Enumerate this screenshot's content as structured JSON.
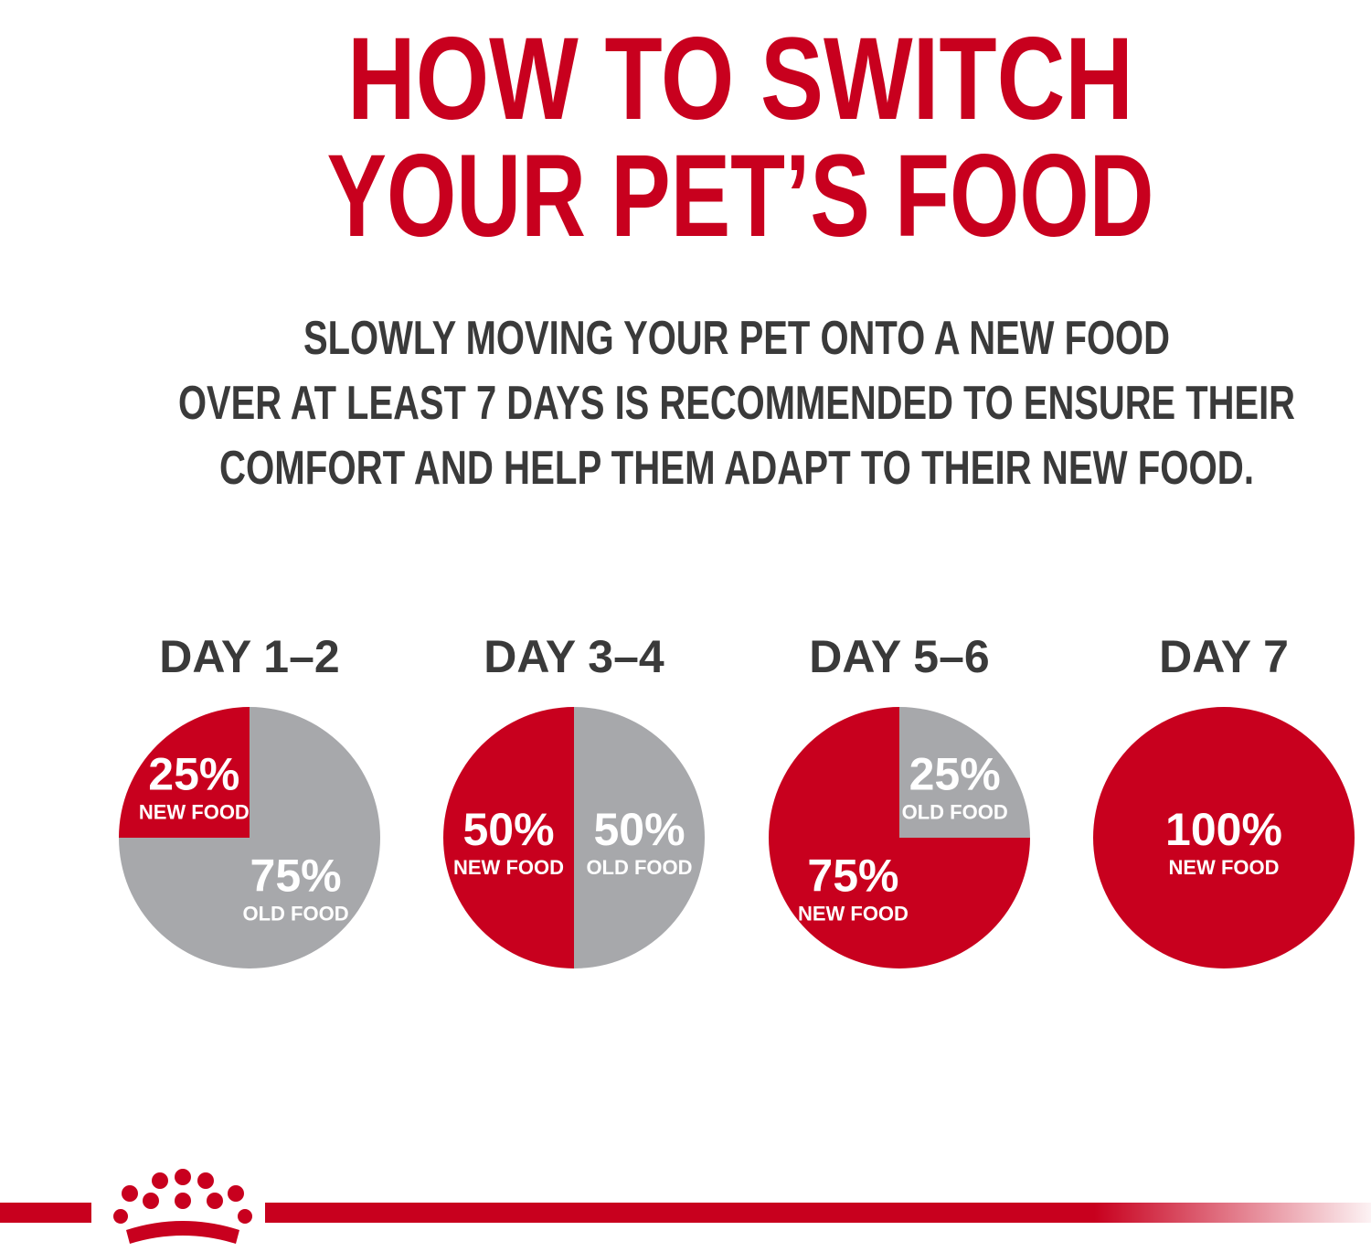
{
  "title": [
    "HOW TO SWITCH",
    "YOUR PET’S FOOD"
  ],
  "description": [
    "SLOWLY MOVING YOUR PET ONTO A NEW FOOD",
    "OVER AT LEAST 7 DAYS IS RECOMMENDED TO ENSURE THEIR",
    "COMFORT AND HELP THEM ADAPT TO THEIR NEW FOOD."
  ],
  "chart_data": [
    {
      "type": "pie",
      "title": "DAY 1–2",
      "categories": [
        "NEW FOOD",
        "OLD FOOD"
      ],
      "values": [
        25,
        75
      ],
      "value_labels": [
        "25%",
        "75%"
      ],
      "colors": [
        "#c8001e",
        "#a7a8ab"
      ]
    },
    {
      "type": "pie",
      "title": "DAY 3–4",
      "categories": [
        "NEW FOOD",
        "OLD FOOD"
      ],
      "values": [
        50,
        50
      ],
      "value_labels": [
        "50%",
        "50%"
      ],
      "colors": [
        "#c8001e",
        "#a7a8ab"
      ]
    },
    {
      "type": "pie",
      "title": "DAY 5–6",
      "categories": [
        "NEW FOOD",
        "OLD FOOD"
      ],
      "values": [
        75,
        25
      ],
      "value_labels": [
        "75%",
        "25%"
      ],
      "colors": [
        "#c8001e",
        "#a7a8ab"
      ]
    },
    {
      "type": "pie",
      "title": "DAY 7",
      "categories": [
        "NEW FOOD"
      ],
      "values": [
        100
      ],
      "value_labels": [
        "100%"
      ],
      "colors": [
        "#c8001e"
      ]
    }
  ]
}
